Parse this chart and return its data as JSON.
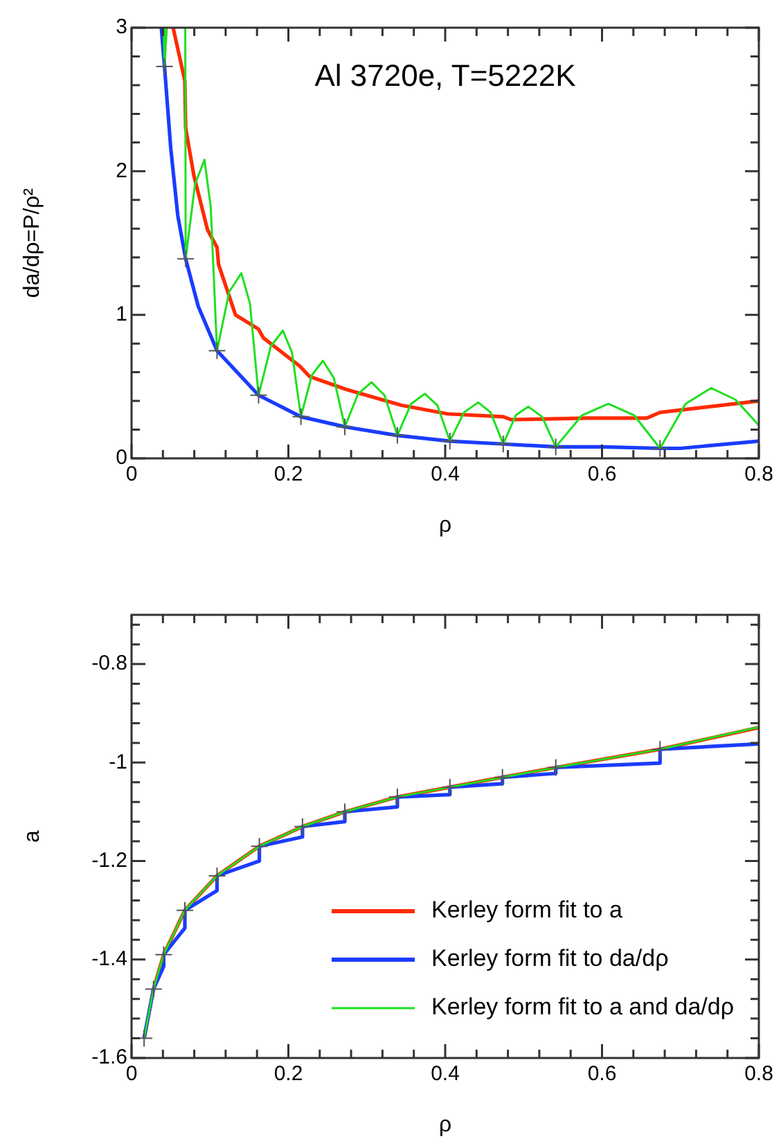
{
  "chart_data": [
    {
      "type": "line",
      "annotations": [
        "Al 3720e, T=5222K"
      ],
      "xlabel": "ρ",
      "ylabel": "da/dρ=P/ρ²",
      "xlim": [
        0,
        0.8
      ],
      "ylim": [
        0,
        3
      ],
      "xticks": [
        0,
        {
          "value": 0.04,
          "label": null
        },
        {
          "value": 0.08,
          "label": null
        },
        {
          "value": 0.12,
          "label": null
        },
        {
          "value": 0.16,
          "label": null
        },
        0.2,
        {
          "value": 0.24,
          "label": null
        },
        {
          "value": 0.28,
          "label": null
        },
        {
          "value": 0.32,
          "label": null
        },
        {
          "value": 0.36,
          "label": null
        },
        0.4,
        {
          "value": 0.44,
          "label": null
        },
        {
          "value": 0.48,
          "label": null
        },
        {
          "value": 0.52,
          "label": null
        },
        {
          "value": 0.56,
          "label": null
        },
        0.6,
        {
          "value": 0.64,
          "label": null
        },
        {
          "value": 0.68,
          "label": null
        },
        {
          "value": 0.72,
          "label": null
        },
        {
          "value": 0.76,
          "label": null
        },
        0.8
      ],
      "yticks": [
        0,
        {
          "value": 0.2,
          "label": null
        },
        {
          "value": 0.4,
          "label": null
        },
        {
          "value": 0.6,
          "label": null
        },
        {
          "value": 0.8,
          "label": null
        },
        1,
        {
          "value": 1.2,
          "label": null
        },
        {
          "value": 1.4,
          "label": null
        },
        {
          "value": 1.6,
          "label": null
        },
        {
          "value": 1.8,
          "label": null
        },
        2,
        {
          "value": 2.2,
          "label": null
        },
        {
          "value": 2.4,
          "label": null
        },
        {
          "value": 2.6,
          "label": null
        },
        {
          "value": 2.8,
          "label": null
        },
        3
      ],
      "series": [
        {
          "color": "#ff2a00",
          "x": [
            0.053,
            0.068,
            0.069,
            0.0795,
            0.097,
            0.109,
            0.111,
            0.1325,
            0.162,
            0.168,
            0.215,
            0.227,
            0.274,
            0.344,
            0.403,
            0.474,
            0.484,
            0.58,
            0.657,
            0.674,
            0.8
          ],
          "values": [
            3.0,
            2.63,
            2.3,
            1.97,
            1.59,
            1.47,
            1.35,
            1.0,
            0.9,
            0.84,
            0.64,
            0.57,
            0.48,
            0.37,
            0.31,
            0.29,
            0.27,
            0.28,
            0.28,
            0.32,
            0.4
          ]
        },
        {
          "color": "#1a3cff",
          "x": [
            0.038,
            0.042,
            0.05,
            0.059,
            0.069,
            0.085,
            0.109,
            0.162,
            0.216,
            0.272,
            0.339,
            0.406,
            0.474,
            0.541,
            0.6,
            0.674,
            0.7,
            0.8
          ],
          "values": [
            3.0,
            2.73,
            2.16,
            1.69,
            1.39,
            1.06,
            0.75,
            0.44,
            0.29,
            0.22,
            0.16,
            0.12,
            0.1,
            0.08,
            0.08,
            0.07,
            0.07,
            0.12
          ]
        },
        {
          "color": "#1ee01e",
          "x": [
            0.041,
            0.042,
            0.045,
            0.055,
            0.0685,
            0.069,
            0.081,
            0.093,
            0.101,
            0.109,
            0.1245,
            0.14,
            0.151,
            0.162,
            0.1775,
            0.193,
            0.2045,
            0.216,
            0.23,
            0.244,
            0.258,
            0.272,
            0.289,
            0.306,
            0.3225,
            0.339,
            0.3565,
            0.374,
            0.39,
            0.406,
            0.424,
            0.442,
            0.458,
            0.474,
            0.49,
            0.506,
            0.5235,
            0.541,
            0.5745,
            0.608,
            0.641,
            0.674,
            0.7065,
            0.739,
            0.77,
            0.8
          ],
          "values": [
            3.0,
            2.73,
            3.0,
            null,
            3.0,
            1.39,
            1.91,
            2.08,
            1.75,
            0.75,
            1.16,
            1.29,
            1.08,
            0.44,
            0.78,
            0.89,
            0.74,
            0.29,
            0.58,
            0.68,
            0.56,
            0.22,
            0.45,
            0.53,
            0.44,
            0.16,
            0.38,
            0.45,
            0.37,
            0.12,
            0.32,
            0.39,
            0.32,
            0.1,
            0.3,
            0.36,
            0.29,
            0.08,
            0.3,
            0.38,
            0.3,
            0.07,
            0.38,
            0.49,
            0.41,
            0.23
          ]
        },
        {
          "type": "scatter",
          "marker": "cross",
          "color": "#555555",
          "x": [
            0.042,
            0.069,
            0.109,
            0.162,
            0.216,
            0.272,
            0.339,
            0.406,
            0.474,
            0.541,
            0.674
          ],
          "values": [
            2.73,
            1.39,
            0.75,
            0.44,
            0.29,
            0.22,
            0.16,
            0.12,
            0.1,
            0.08,
            0.07
          ]
        }
      ]
    },
    {
      "type": "line",
      "xlabel": "ρ",
      "ylabel": "a",
      "xlim": [
        0,
        0.8
      ],
      "ylim": [
        -1.6,
        -0.7
      ],
      "legend": "bottom right",
      "xticks": [
        0,
        {
          "value": 0.04,
          "label": null
        },
        {
          "value": 0.08,
          "label": null
        },
        {
          "value": 0.12,
          "label": null
        },
        {
          "value": 0.16,
          "label": null
        },
        0.2,
        {
          "value": 0.24,
          "label": null
        },
        {
          "value": 0.28,
          "label": null
        },
        {
          "value": 0.32,
          "label": null
        },
        {
          "value": 0.36,
          "label": null
        },
        0.4,
        {
          "value": 0.44,
          "label": null
        },
        {
          "value": 0.48,
          "label": null
        },
        {
          "value": 0.52,
          "label": null
        },
        {
          "value": 0.56,
          "label": null
        },
        0.6,
        {
          "value": 0.64,
          "label": null
        },
        {
          "value": 0.68,
          "label": null
        },
        {
          "value": 0.72,
          "label": null
        },
        {
          "value": 0.76,
          "label": null
        },
        0.8
      ],
      "yticks": [
        -1.6,
        {
          "value": -1.56,
          "label": null
        },
        {
          "value": -1.52,
          "label": null
        },
        {
          "value": -1.48,
          "label": null
        },
        {
          "value": -1.44,
          "label": null
        },
        -1.4,
        {
          "value": -1.36,
          "label": null
        },
        {
          "value": -1.32,
          "label": null
        },
        {
          "value": -1.28,
          "label": null
        },
        {
          "value": -1.24,
          "label": null
        },
        -1.2,
        {
          "value": -1.16,
          "label": null
        },
        {
          "value": -1.12,
          "label": null
        },
        {
          "value": -1.08,
          "label": null
        },
        {
          "value": -1.04,
          "label": null
        },
        -1,
        {
          "value": -0.96,
          "label": null
        },
        {
          "value": -0.92,
          "label": null
        },
        {
          "value": -0.88,
          "label": null
        },
        {
          "value": -0.84,
          "label": null
        },
        -0.8,
        {
          "value": -0.76,
          "label": null
        },
        {
          "value": -0.72,
          "label": null
        }
      ],
      "series": [
        {
          "name": "Kerley form fit to a",
          "color": "#ff2a00",
          "x": [
            0.016,
            0.028,
            0.041,
            0.068,
            0.109,
            0.163,
            0.218,
            0.272,
            0.339,
            0.406,
            0.473,
            0.541,
            0.674,
            0.8
          ],
          "values": [
            -1.56,
            -1.46,
            -1.39,
            -1.3,
            -1.23,
            -1.17,
            -1.13,
            -1.1,
            -1.07,
            -1.05,
            -1.03,
            -1.01,
            -0.973,
            -0.929
          ]
        },
        {
          "name": "Kerley form fit to da/dρ",
          "color": "#1a3cff",
          "x": [
            0.016,
            0.028,
            0.041,
            0.041,
            0.068,
            0.068,
            0.109,
            0.109,
            0.163,
            0.163,
            0.218,
            0.218,
            0.272,
            0.272,
            0.339,
            0.339,
            0.406,
            0.406,
            0.473,
            0.473,
            0.541,
            0.541,
            0.674,
            0.674,
            0.8
          ],
          "values": [
            -1.56,
            -1.46,
            -1.414,
            -1.39,
            -1.336,
            -1.3,
            -1.26,
            -1.23,
            -1.2,
            -1.17,
            -1.151,
            -1.13,
            -1.12,
            -1.1,
            -1.09,
            -1.07,
            -1.065,
            -1.05,
            -1.043,
            -1.03,
            -1.022,
            -1.01,
            -1.001,
            -0.973,
            -0.962
          ]
        },
        {
          "name": "Kerley form fit to a and da/dρ",
          "color": "#1ee01e",
          "x": [
            0.016,
            0.028,
            0.041,
            0.068,
            0.109,
            0.163,
            0.218,
            0.272,
            0.339,
            0.406,
            0.473,
            0.541,
            0.674,
            0.8
          ],
          "values": [
            -1.56,
            -1.46,
            -1.39,
            -1.3,
            -1.23,
            -1.17,
            -1.13,
            -1.1,
            -1.07,
            -1.05,
            -1.03,
            -1.01,
            -0.973,
            -0.928
          ]
        },
        {
          "type": "scatter",
          "marker": "cross",
          "color": "#555555",
          "x": [
            0.016,
            0.028,
            0.041,
            0.068,
            0.109,
            0.163,
            0.218,
            0.272,
            0.339,
            0.406,
            0.473,
            0.541,
            0.674
          ],
          "values": [
            -1.56,
            -1.46,
            -1.39,
            -1.3,
            -1.23,
            -1.17,
            -1.13,
            -1.1,
            -1.07,
            -1.05,
            -1.03,
            -1.01,
            -0.973
          ]
        }
      ]
    }
  ]
}
